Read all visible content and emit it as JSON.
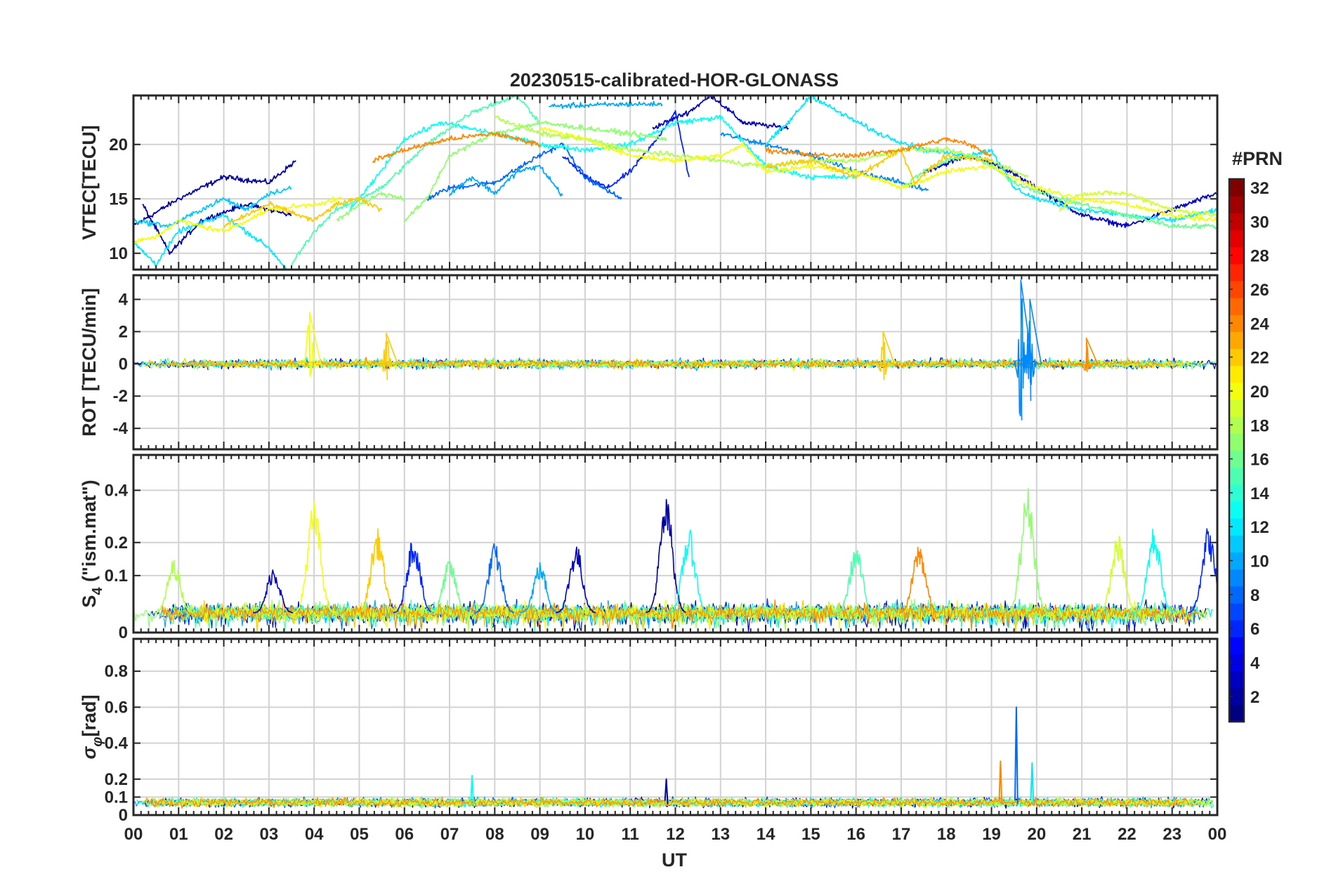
{
  "figure": {
    "title": "20230515-calibrated-HOR-GLONASS",
    "xlabel": "UT",
    "x_tick_labels": [
      "00",
      "01",
      "02",
      "03",
      "04",
      "05",
      "06",
      "07",
      "08",
      "09",
      "10",
      "11",
      "12",
      "13",
      "14",
      "15",
      "16",
      "17",
      "18",
      "19",
      "20",
      "21",
      "22",
      "23",
      "00"
    ]
  },
  "colorbar": {
    "title": "#PRN",
    "range": [
      1,
      32
    ],
    "tick_labels": [
      "2",
      "4",
      "6",
      "8",
      "10",
      "12",
      "14",
      "16",
      "18",
      "20",
      "22",
      "24",
      "26",
      "28",
      "30",
      "32"
    ],
    "colormap": "jet",
    "colormap_stops": [
      "#00008f",
      "#0000ff",
      "#00ffff",
      "#ffff00",
      "#ff0000",
      "#800000"
    ]
  },
  "chart_data": [
    {
      "type": "line",
      "panel": "vtec",
      "ylabel": "VTEC[TECU]",
      "xlim": [
        0,
        24
      ],
      "ylim": [
        8.5,
        24.5
      ],
      "yticks": [
        10,
        15,
        20
      ],
      "y_tick_labels": [
        "10",
        "15",
        "20"
      ],
      "grid": true,
      "series": [
        {
          "prn": 2,
          "x": [
            0.0,
            1.0,
            2.0,
            3.0,
            3.6
          ],
          "y": [
            12.5,
            15.0,
            17.0,
            16.5,
            18.5
          ]
        },
        {
          "prn": 2,
          "x": [
            0.2,
            0.8,
            1.5,
            2.5,
            3.5
          ],
          "y": [
            14.5,
            10.0,
            13.0,
            14.5,
            13.5
          ]
        },
        {
          "prn": 3,
          "x": [
            11.5,
            12.3,
            12.8,
            13.5,
            14.5
          ],
          "y": [
            21.5,
            23.0,
            24.5,
            22.0,
            21.5
          ]
        },
        {
          "prn": 3,
          "x": [
            17.5,
            18.5,
            19.2,
            20.0,
            21.0,
            22.0,
            23.0,
            24.0
          ],
          "y": [
            17.5,
            19.0,
            18.0,
            16.0,
            13.5,
            12.5,
            14.0,
            15.5
          ]
        },
        {
          "prn": 6,
          "x": [
            9.5,
            10.0,
            10.5,
            11.0,
            11.5,
            12.0,
            12.3
          ],
          "y": [
            19.0,
            17.0,
            16.0,
            17.5,
            20.0,
            23.0,
            17.0
          ]
        },
        {
          "prn": 8,
          "x": [
            6.5,
            7.0,
            8.0,
            9.0,
            9.5,
            10.0,
            10.8
          ],
          "y": [
            15.0,
            16.0,
            16.5,
            19.0,
            20.0,
            17.0,
            15.0
          ]
        },
        {
          "prn": 9,
          "x": [
            13.0,
            14.0,
            15.0,
            16.0,
            17.0,
            17.6
          ],
          "y": [
            21.0,
            20.0,
            19.0,
            17.5,
            16.5,
            15.8
          ]
        },
        {
          "prn": 10,
          "x": [
            7.0,
            7.5,
            8.0,
            8.5,
            9.0,
            9.5
          ],
          "y": [
            15.5,
            17.0,
            15.5,
            17.5,
            18.0,
            15.3
          ]
        },
        {
          "prn": 10,
          "x": [
            9.2,
            10.0,
            11.0,
            11.7
          ],
          "y": [
            23.5,
            23.6,
            23.7,
            23.7
          ]
        },
        {
          "prn": 11,
          "x": [
            0.0,
            0.8,
            1.5,
            2.0,
            2.5,
            3.0,
            3.5
          ],
          "y": [
            13.0,
            12.5,
            14.0,
            15.0,
            14.0,
            15.5,
            16.0
          ]
        },
        {
          "prn": 12,
          "x": [
            0.0,
            0.5,
            1.0,
            2.0,
            2.5,
            3.0,
            3.4
          ],
          "y": [
            11.0,
            9.0,
            12.0,
            13.5,
            12.0,
            10.5,
            8.5
          ]
        },
        {
          "prn": 12,
          "x": [
            14.0,
            14.5,
            15.0,
            15.6,
            16.5,
            17.5,
            18.5,
            19.0,
            19.5,
            20.0,
            21.0,
            22.0,
            23.0,
            24.0
          ],
          "y": [
            20.0,
            22.0,
            24.5,
            23.0,
            21.0,
            19.5,
            19.0,
            19.5,
            16.0,
            15.0,
            14.0,
            13.5,
            13.0,
            14.0
          ]
        },
        {
          "prn": 13,
          "x": [
            4.8,
            5.3,
            6.0,
            6.8,
            8.0,
            9.0,
            10.0,
            11.0,
            12.0,
            13.0,
            14.0,
            15.0,
            16.0
          ],
          "y": [
            14.0,
            16.5,
            20.5,
            22.0,
            21.0,
            20.0,
            19.5,
            20.0,
            22.0,
            22.5,
            18.0,
            17.0,
            17.0
          ]
        },
        {
          "prn": 15,
          "x": [
            3.5,
            4.0,
            4.5,
            5.5,
            6.5,
            7.5,
            8.5,
            9.0
          ],
          "y": [
            9.0,
            12.0,
            14.0,
            16.0,
            20.0,
            23.0,
            24.5,
            22.0
          ]
        },
        {
          "prn": 16,
          "x": [
            17.0,
            17.5,
            18.0,
            18.5,
            19.0,
            19.5,
            20.5,
            21.5,
            22.5,
            23.0,
            24.0
          ],
          "y": [
            16.0,
            17.5,
            18.5,
            19.0,
            18.0,
            16.5,
            15.0,
            14.0,
            13.0,
            12.5,
            12.5
          ]
        },
        {
          "prn": 17,
          "x": [
            4.5,
            5.0,
            5.5,
            6.0
          ],
          "y": [
            13.0,
            14.5,
            15.5,
            15.0
          ]
        },
        {
          "prn": 17,
          "x": [
            6.0,
            6.5,
            7.0,
            8.0,
            9.0,
            10.0,
            11.0,
            11.8
          ],
          "y": [
            13.0,
            15.0,
            19.0,
            21.0,
            22.0,
            21.5,
            21.0,
            20.5
          ]
        },
        {
          "prn": 18,
          "x": [
            8.0,
            9.0,
            10.0,
            11.0,
            12.0,
            13.0,
            14.0,
            15.0,
            16.0,
            17.0,
            18.0,
            19.0,
            19.8
          ],
          "y": [
            22.5,
            21.0,
            20.5,
            19.5,
            19.0,
            18.5,
            18.0,
            18.5,
            18.5,
            19.5,
            19.5,
            18.5,
            17.0
          ]
        },
        {
          "prn": 19,
          "x": [
            20.5,
            21.0,
            22.0,
            23.0,
            24.0
          ],
          "y": [
            14.0,
            15.5,
            15.5,
            14.0,
            13.5
          ]
        },
        {
          "prn": 20,
          "x": [
            0.0,
            0.5,
            1.0,
            2.0,
            3.0,
            4.0,
            4.6
          ],
          "y": [
            11.0,
            11.5,
            13.0,
            12.0,
            14.0,
            14.5,
            15.0
          ]
        },
        {
          "prn": 20,
          "x": [
            9.0,
            10.0,
            11.0,
            12.0,
            13.0,
            13.5,
            14.0,
            15.0,
            16.0,
            17.0,
            18.0,
            19.0,
            20.0,
            21.0,
            22.0,
            23.0,
            24.0
          ],
          "y": [
            21.5,
            20.5,
            19.0,
            18.5,
            19.0,
            20.0,
            17.5,
            18.0,
            17.5,
            16.0,
            17.5,
            18.0,
            16.0,
            15.0,
            14.5,
            13.5,
            13.0
          ]
        },
        {
          "prn": 22,
          "x": [
            2.0,
            3.0,
            4.0,
            4.5,
            5.0,
            5.5
          ],
          "y": [
            12.5,
            14.5,
            13.0,
            14.5,
            15.0,
            14.0
          ]
        },
        {
          "prn": 22,
          "x": [
            14.0,
            15.0,
            16.0,
            17.0,
            17.3,
            18.0,
            19.0
          ],
          "y": [
            18.0,
            18.5,
            17.0,
            19.5,
            16.5,
            19.0,
            18.5
          ]
        },
        {
          "prn": 24,
          "x": [
            5.3,
            6.0,
            7.0,
            8.0,
            8.5,
            9.0
          ],
          "y": [
            18.5,
            19.5,
            20.5,
            21.0,
            20.5,
            20.0
          ]
        },
        {
          "prn": 24,
          "x": [
            14.0,
            15.0,
            16.0,
            17.0,
            18.0,
            18.5,
            19.0
          ],
          "y": [
            19.5,
            19.0,
            19.0,
            19.5,
            20.5,
            20.0,
            19.0
          ]
        }
      ]
    },
    {
      "type": "line",
      "panel": "rot",
      "ylabel": "ROT [TECU/min]",
      "xlim": [
        0,
        24
      ],
      "ylim": [
        -5.3,
        5.5
      ],
      "yticks": [
        -4,
        -2,
        0,
        2,
        4
      ],
      "y_tick_labels": [
        "-4",
        "-2",
        "0",
        "2",
        "4"
      ],
      "grid": true,
      "noise": {
        "base_amplitude": 0.35,
        "typical_range": [
          -1.2,
          1.2
        ]
      },
      "spikes": [
        {
          "x": 3.9,
          "ymax": 3.2,
          "ymin": -0.8,
          "prn": 20
        },
        {
          "x": 5.6,
          "ymax": 1.9,
          "ymin": -1.0,
          "prn": 22
        },
        {
          "x": 16.6,
          "ymax": 2.0,
          "ymin": -1.0,
          "prn": 22
        },
        {
          "x": 19.65,
          "ymax": 5.2,
          "ymin": -3.5,
          "prn": 9
        },
        {
          "x": 19.85,
          "ymax": 4.0,
          "ymin": -2.3,
          "prn": 9
        },
        {
          "x": 21.1,
          "ymax": 1.6,
          "ymin": -0.5,
          "prn": 24
        }
      ]
    },
    {
      "type": "line",
      "panel": "s4",
      "ylabel": "S4 (\"ism.mat\")",
      "ylabel_main": "S",
      "ylabel_sub": "4",
      "ylabel_rest": " (\"ism.mat\")",
      "xlim": [
        0,
        24
      ],
      "ylim": [
        0,
        0.56
      ],
      "yticks": [
        0,
        0.1,
        0.2,
        0.4
      ],
      "y_tick_labels": [
        "0",
        "0.1",
        "0.2",
        "0.4"
      ],
      "scale": "power-0.66",
      "grid": true,
      "noise": {
        "base": 0.02,
        "typical_max": 0.08
      },
      "bursts": [
        {
          "x": 0.9,
          "peak": 0.15,
          "prn": 18
        },
        {
          "x": 3.1,
          "peak": 0.13,
          "prn": 3
        },
        {
          "x": 4.0,
          "peak": 0.36,
          "prn": 20
        },
        {
          "x": 5.4,
          "peak": 0.25,
          "prn": 22
        },
        {
          "x": 6.2,
          "peak": 0.23,
          "prn": 6
        },
        {
          "x": 7.0,
          "peak": 0.15,
          "prn": 16
        },
        {
          "x": 8.0,
          "peak": 0.2,
          "prn": 8
        },
        {
          "x": 9.0,
          "peak": 0.14,
          "prn": 10
        },
        {
          "x": 9.8,
          "peak": 0.2,
          "prn": 3
        },
        {
          "x": 11.8,
          "peak": 0.37,
          "prn": 2
        },
        {
          "x": 12.3,
          "peak": 0.25,
          "prn": 13
        },
        {
          "x": 16.0,
          "peak": 0.19,
          "prn": 15
        },
        {
          "x": 17.4,
          "peak": 0.2,
          "prn": 24
        },
        {
          "x": 19.8,
          "peak": 0.42,
          "prn": 17
        },
        {
          "x": 21.8,
          "peak": 0.23,
          "prn": 19
        },
        {
          "x": 22.6,
          "peak": 0.26,
          "prn": 13
        },
        {
          "x": 23.8,
          "peak": 0.26,
          "prn": 6
        }
      ]
    },
    {
      "type": "line",
      "panel": "sigma_phi",
      "ylabel": "σφ [rad]",
      "ylabel_main": "σ",
      "ylabel_sub": "φ",
      "ylabel_rest": "[rad]",
      "xlim": [
        0,
        24
      ],
      "ylim": [
        0,
        0.98
      ],
      "yticks": [
        0,
        0.1,
        0.2,
        0.4,
        0.6,
        0.8
      ],
      "y_tick_labels": [
        "0",
        "0.1",
        "0.2",
        "0.4",
        "0.6",
        "0.8"
      ],
      "grid": true,
      "noise": {
        "base": 0.07,
        "typical_max": 0.18
      },
      "spikes": [
        {
          "x": 7.5,
          "peak": 0.22,
          "prn": 13
        },
        {
          "x": 11.8,
          "peak": 0.2,
          "prn": 2
        },
        {
          "x": 19.2,
          "peak": 0.3,
          "prn": 24
        },
        {
          "x": 19.55,
          "peak": 0.6,
          "prn": 8
        },
        {
          "x": 19.9,
          "peak": 0.29,
          "prn": 12
        }
      ]
    }
  ]
}
